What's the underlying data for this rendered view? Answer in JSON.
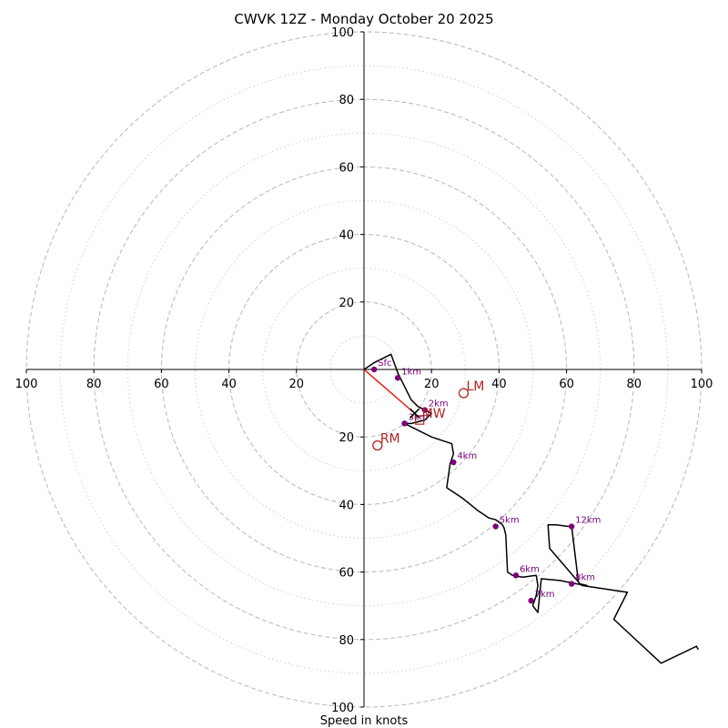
{
  "chart_data": {
    "type": "scatter",
    "title": "CWVK 12Z - Monday October 20 2025",
    "xlabel": "Speed in knots",
    "ylabel": "",
    "xlim": [
      -100,
      100
    ],
    "ylim": [
      -100,
      100
    ],
    "x_tick_labels": [
      "100",
      "80",
      "60",
      "40",
      "20",
      "20",
      "40",
      "60",
      "80",
      "100"
    ],
    "y_tick_labels": [
      "100",
      "80",
      "60",
      "40",
      "20",
      "20",
      "40",
      "60",
      "80",
      "100"
    ],
    "rings_major": [
      20,
      40,
      60,
      80,
      100
    ],
    "rings_minor": [
      10,
      30,
      50,
      70,
      90
    ],
    "hodograph": {
      "u": [
        0,
        3,
        8,
        10,
        12,
        14,
        16,
        20,
        18,
        14,
        12,
        16,
        20,
        26,
        26.5,
        25.5,
        24.5,
        29,
        34,
        37,
        39,
        41,
        41.5,
        42,
        42.5,
        44,
        47,
        51,
        51.5,
        51,
        50,
        51.5,
        52.5,
        58,
        63,
        66,
        64,
        55,
        54.5,
        57,
        60.5,
        61.5,
        63.5,
        64.5,
        78,
        74,
        88,
        98.5,
        99
      ],
      "v": [
        0,
        2,
        4.5,
        -1,
        -5,
        -9,
        -11,
        -13,
        -15,
        -16,
        -16,
        -18,
        -20,
        -22,
        -25,
        -28,
        -35,
        -38,
        -42,
        -44,
        -44.5,
        -46,
        -47,
        -49,
        -60,
        -61,
        -61.5,
        -61,
        -64,
        -67,
        -70,
        -72,
        -62,
        -62.5,
        -63.5,
        -64,
        -63.5,
        -53,
        -46,
        -46,
        -46.5,
        -46.5,
        -63,
        -64,
        -66,
        -74,
        -87,
        -82,
        -83
      ]
    },
    "height_markers": [
      {
        "label": "Sfc",
        "u": 3,
        "v": 0
      },
      {
        "label": "1km",
        "u": 10,
        "v": -2.5
      },
      {
        "label": "2km",
        "u": 18,
        "v": -12
      },
      {
        "label": "3km",
        "u": 12,
        "v": -16
      },
      {
        "label": "4km",
        "u": 26.5,
        "v": -27.5
      },
      {
        "label": "5km",
        "u": 39,
        "v": -46.5
      },
      {
        "label": "6km",
        "u": 45,
        "v": -61
      },
      {
        "label": "7km",
        "u": 49.5,
        "v": -68.5
      },
      {
        "label": "8km",
        "u": 61.5,
        "v": -63.5
      },
      {
        "label": "12km",
        "u": 61.5,
        "v": -46.5
      }
    ],
    "storm_motion": [
      {
        "label": "LM",
        "u": 29.5,
        "v": -7
      },
      {
        "label": "RM",
        "u": 4,
        "v": -22.5
      },
      {
        "label": "MW",
        "u": 15,
        "v": -13
      }
    ],
    "effective_inflow_marker": {
      "u": 16.5,
      "v": -15
    },
    "shear_vector": {
      "from": [
        0,
        0
      ],
      "to": [
        15,
        -13
      ]
    }
  }
}
